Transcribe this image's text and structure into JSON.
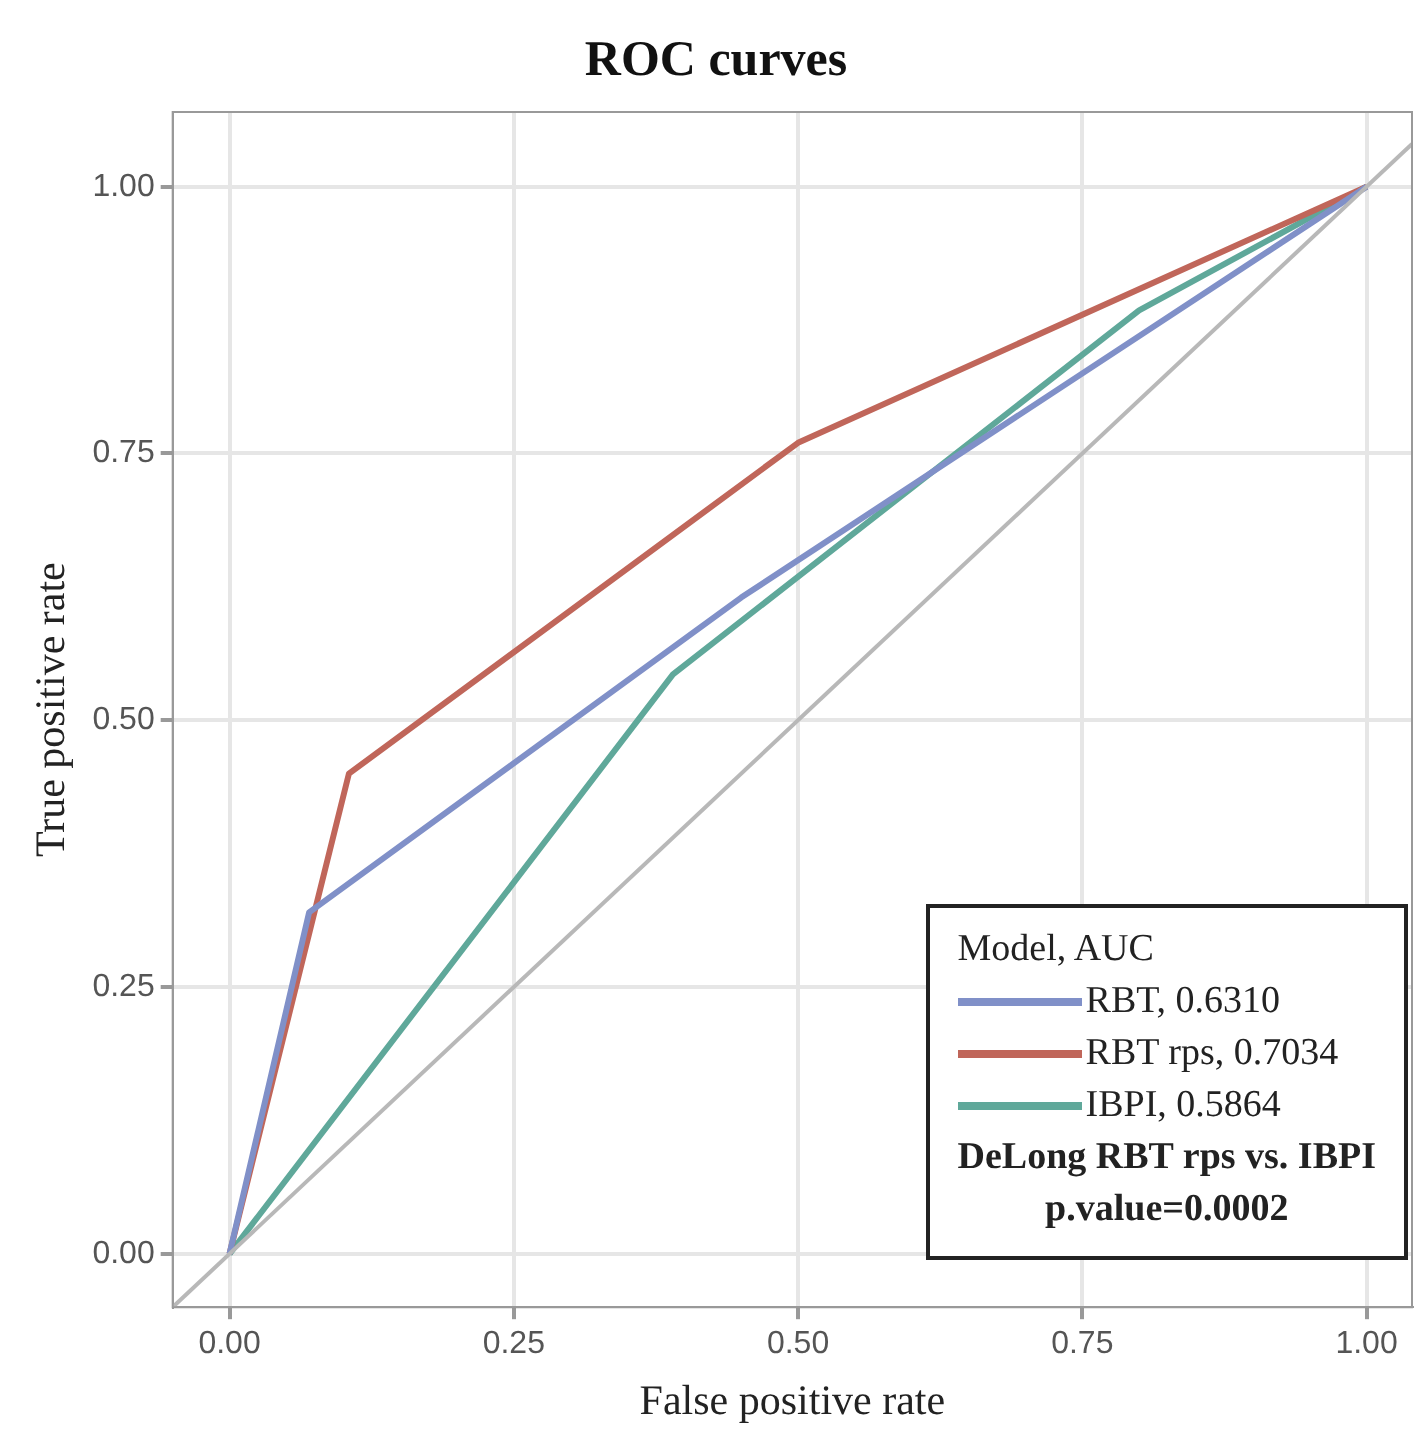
{
  "chart_data": {
    "type": "line",
    "title": "ROC curves",
    "xlabel": "False positive rate",
    "ylabel": "True positive rate",
    "legend_title": "Model, AUC",
    "xlim": [
      -0.05,
      1.04
    ],
    "ylim": [
      -0.05,
      1.07
    ],
    "xticks": [
      {
        "value": 0,
        "label": "0.00"
      },
      {
        "value": 0.25,
        "label": "0.25"
      },
      {
        "value": 0.5,
        "label": "0.50"
      },
      {
        "value": 0.75,
        "label": "0.75"
      },
      {
        "value": 1,
        "label": "1.00"
      }
    ],
    "yticks": [
      {
        "value": 0,
        "label": "0.00"
      },
      {
        "value": 0.25,
        "label": "0.25"
      },
      {
        "value": 0.5,
        "label": "0.50"
      },
      {
        "value": 0.75,
        "label": "0.75"
      },
      {
        "value": 1,
        "label": "1.00"
      }
    ],
    "series": [
      {
        "color": "#b8b8b8",
        "x": [
          -0.05,
          1.04
        ],
        "values": [
          -0.05,
          1.04
        ]
      },
      {
        "name": "RBT, 0.6310",
        "color": "#8090c8",
        "x": [
          0,
          0.07,
          0.45,
          1
        ],
        "values": [
          0,
          0.32,
          0.615,
          1
        ]
      },
      {
        "name": "RBT rps, 0.7034",
        "color": "#c0665a",
        "x": [
          0,
          0.105,
          0.5,
          1
        ],
        "values": [
          0,
          0.45,
          0.76,
          1
        ]
      },
      {
        "name": "IBPI, 0.5864",
        "color": "#5fa89a",
        "x": [
          0,
          0.39,
          0.8,
          1
        ],
        "values": [
          0,
          0.543,
          0.884,
          1
        ]
      }
    ],
    "annotations": [
      "DeLong RBT rps vs. IBPI",
      "p.value=0.0002"
    ],
    "grid": true,
    "legend": "bottom right",
    "marker": "none",
    "line_style": "solid"
  }
}
